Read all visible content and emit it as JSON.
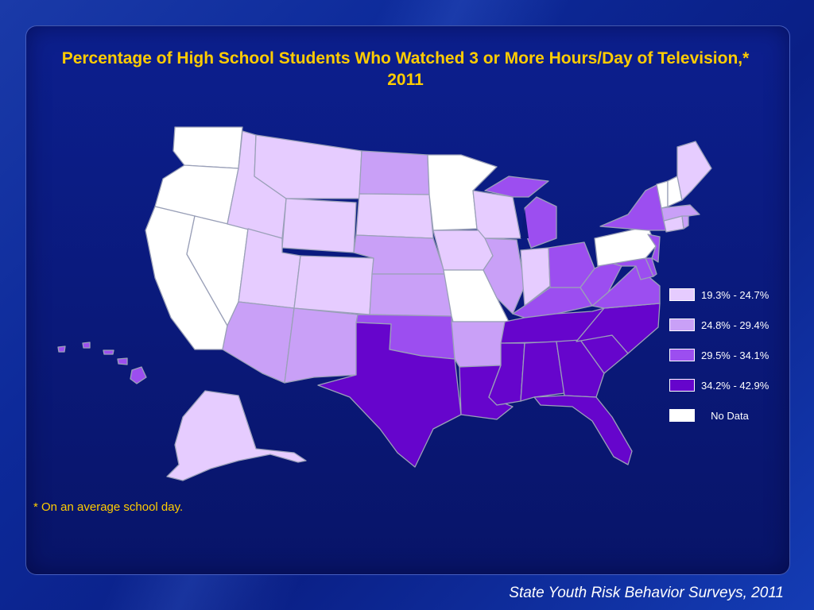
{
  "title": "Percentage of High School Students Who Watched 3 or More Hours/Day of Television,* 2011",
  "footnote": "* On an average school day.",
  "source": "State Youth Risk Behavior Surveys, 2011",
  "colors": {
    "c1": "#e6ccff",
    "c2": "#c9a0f7",
    "c3": "#9c4ef0",
    "c4": "#6605cc",
    "nodata": "#ffffff"
  },
  "legend": [
    {
      "label": "19.3% - 24.7%",
      "class": "c1"
    },
    {
      "label": "24.8% - 29.4%",
      "class": "c2"
    },
    {
      "label": "29.5% - 34.1%",
      "class": "c3"
    },
    {
      "label": "34.2% - 42.9%",
      "class": "c4"
    },
    {
      "label": "No Data",
      "class": "nodata"
    }
  ],
  "states": {
    "WA": "nodata",
    "OR": "nodata",
    "CA": "nodata",
    "NV": "nodata",
    "ID": "c1",
    "MT": "c1",
    "WY": "c1",
    "UT": "c1",
    "CO": "c1",
    "SD": "c1",
    "ND": "c2",
    "AZ": "c2",
    "NM": "c2",
    "NE": "c2",
    "KS": "c2",
    "OK": "c3",
    "TX": "c4",
    "MN": "nodata",
    "IA": "c1",
    "MO": "nodata",
    "AR": "c2",
    "LA": "c4",
    "WI": "c1",
    "IL": "c2",
    "MI": "c3",
    "IN": "c1",
    "OH": "c3",
    "KY": "c3",
    "TN": "c4",
    "MS": "c4",
    "AL": "c4",
    "GA": "c4",
    "FL": "c4",
    "SC": "c4",
    "NC": "c4",
    "VA": "c3",
    "WV": "c3",
    "MD": "c3",
    "DE": "c3",
    "PA": "nodata",
    "NY": "c3",
    "NJ": "c3",
    "CT": "c1",
    "RI": "c2",
    "MA": "c2",
    "VT": "nodata",
    "NH": "nodata",
    "ME": "c1",
    "AK": "c1",
    "HI": "c3"
  }
}
